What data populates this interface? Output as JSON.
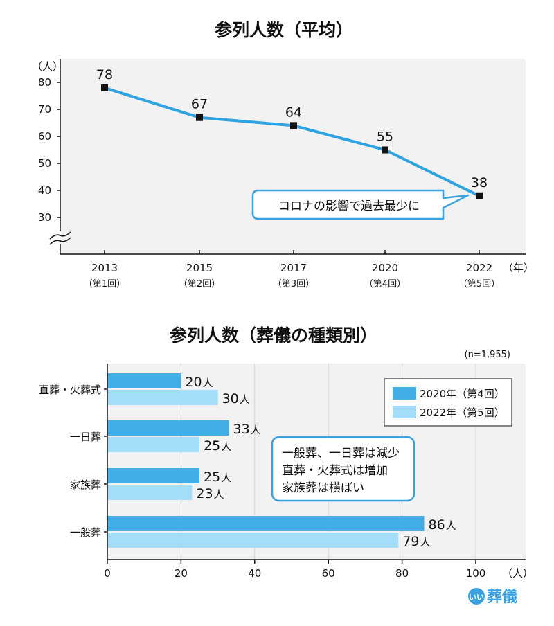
{
  "chart_data": [
    {
      "type": "line",
      "title": "参列人数（平均）",
      "y_unit": "（人）",
      "x_unit": "（年）",
      "x": [
        "2013",
        "2015",
        "2017",
        "2020",
        "2022"
      ],
      "x_sub": [
        "（第1回）",
        "（第2回）",
        "（第3回）",
        "（第4回）",
        "（第5回）"
      ],
      "values": [
        78,
        67,
        64,
        55,
        38
      ],
      "y_ticks": [
        80,
        70,
        60,
        50,
        40,
        30
      ],
      "ylim": [
        30,
        83
      ],
      "axis_break": true,
      "grid": false,
      "annotation": "コロナの影響で過去最少に",
      "colors": {
        "line": "#2fa2e0",
        "marker": "#111111",
        "frame": "#3aa0de",
        "plot_bg": "#f2f2f2"
      }
    },
    {
      "type": "bar",
      "orientation": "horizontal",
      "title": "参列人数（葬儀の種類別）",
      "sample": "(n=1,955)",
      "x_unit": "（人）",
      "categories": [
        "直葬・火葬式",
        "一日葬",
        "家族葬",
        "一般葬"
      ],
      "series": [
        {
          "name": "2020年（第4回）",
          "values": [
            20,
            33,
            25,
            86
          ],
          "color": "#42aee6"
        },
        {
          "name": "2022年（第5回）",
          "values": [
            30,
            25,
            23,
            79
          ],
          "color": "#a4ddfa"
        }
      ],
      "value_unit": "人",
      "x_ticks": [
        0,
        20,
        40,
        60,
        80,
        100
      ],
      "xlim": [
        0,
        114
      ],
      "grid": true,
      "legend": "top-right",
      "annotation": [
        "一般葬、一日葬は減少",
        "直葬・火葬式は増加",
        "家族葬は横ばい"
      ],
      "colors": {
        "frame": "#3aa0de",
        "plot_bg": "#f2f2f2"
      }
    }
  ],
  "logo": {
    "mark": "いい",
    "text": "葬儀"
  }
}
